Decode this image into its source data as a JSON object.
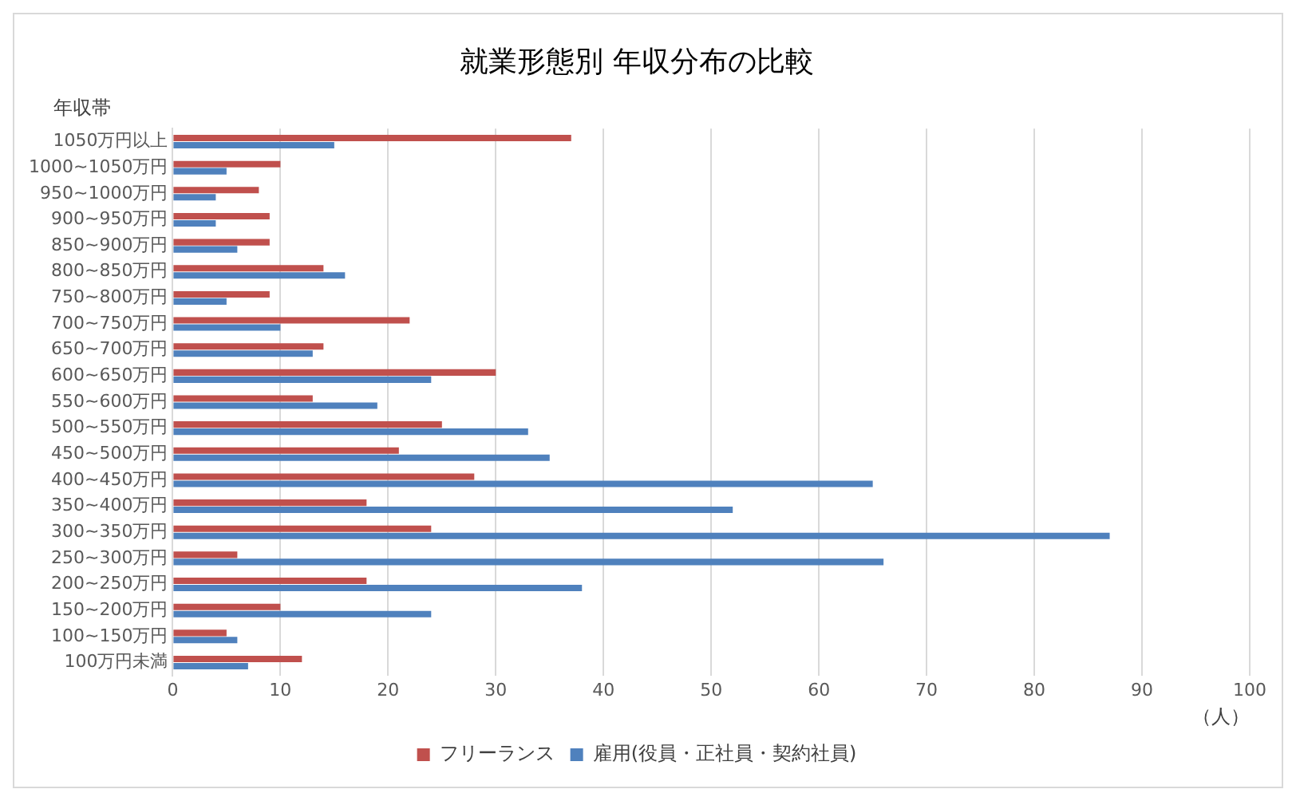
{
  "chart_data": {
    "type": "bar",
    "orientation": "horizontal",
    "title": "就業形態別 年収分布の比較",
    "ylabel": "年収帯",
    "xlabel": "（人）",
    "categories": [
      "1050万円以上",
      "1000~1050万円",
      "950~1000万円",
      "900~950万円",
      "850~900万円",
      "800~850万円",
      "750~800万円",
      "700~750万円",
      "650~700万円",
      "600~650万円",
      "550~600万円",
      "500~550万円",
      "450~500万円",
      "400~450万円",
      "350~400万円",
      "300~350万円",
      "250~300万円",
      "200~250万円",
      "150~200万円",
      "100~150万円",
      "100万円未満"
    ],
    "series": [
      {
        "name": "フリーランス",
        "color": "#c0504d",
        "values": [
          37,
          10,
          8,
          9,
          9,
          14,
          9,
          22,
          14,
          30,
          13,
          25,
          21,
          28,
          18,
          24,
          6,
          18,
          10,
          5,
          12
        ]
      },
      {
        "name": "雇用(役員・正社員・契約社員)",
        "color": "#4f81bd",
        "values": [
          15,
          5,
          4,
          4,
          6,
          16,
          5,
          10,
          13,
          24,
          19,
          33,
          35,
          65,
          52,
          87,
          66,
          38,
          24,
          6,
          7
        ]
      }
    ],
    "xlim": [
      0,
      100
    ],
    "xticks": [
      0,
      10,
      20,
      30,
      40,
      50,
      60,
      70,
      80,
      90,
      100
    ],
    "grid": "x",
    "legend": "bottom"
  }
}
